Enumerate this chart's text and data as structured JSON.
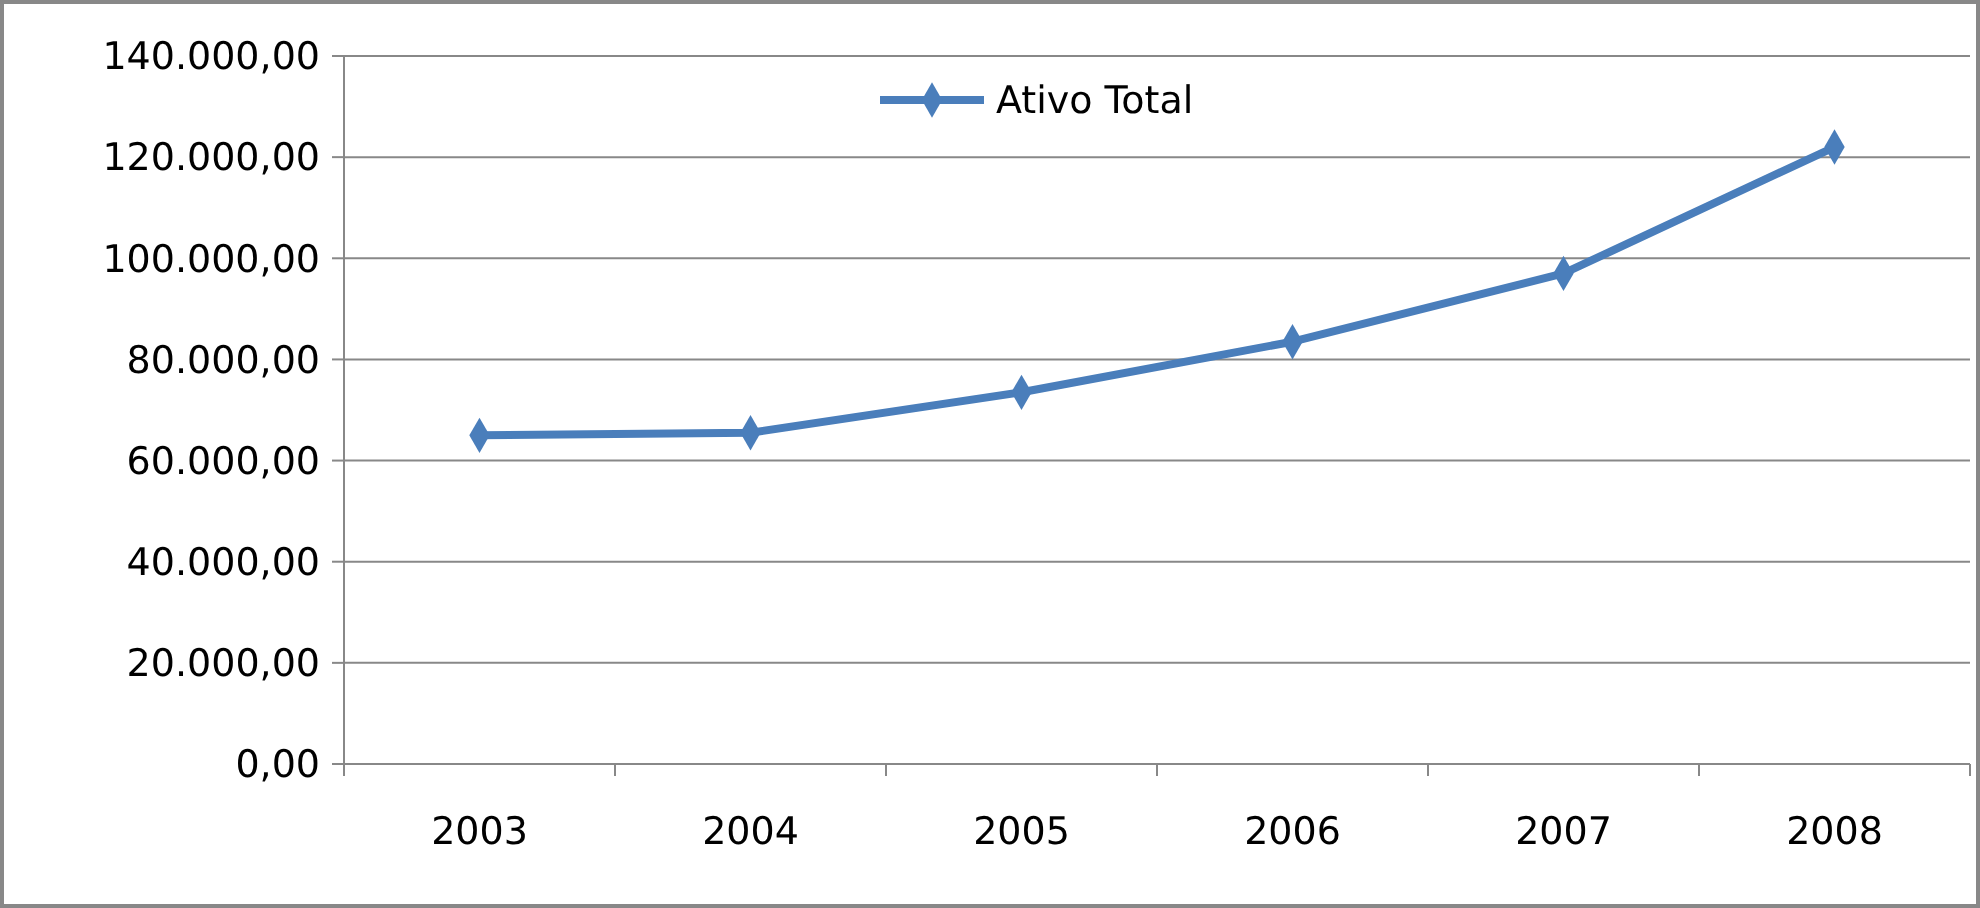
{
  "chart_data": {
    "type": "line",
    "categories": [
      "2003",
      "2004",
      "2005",
      "2006",
      "2007",
      "2008"
    ],
    "series": [
      {
        "name": "Ativo Total",
        "color": "#4a7ebb",
        "values": [
          65000,
          65500,
          73500,
          83500,
          97000,
          122000
        ]
      }
    ],
    "ylim": [
      0,
      140000
    ],
    "yticks": [
      {
        "value": 0,
        "label": "0,00"
      },
      {
        "value": 20000,
        "label": "20.000,00"
      },
      {
        "value": 40000,
        "label": "40.000,00"
      },
      {
        "value": 60000,
        "label": "60.000,00"
      },
      {
        "value": 80000,
        "label": "80.000,00"
      },
      {
        "value": 100000,
        "label": "100.000,00"
      },
      {
        "value": 120000,
        "label": "120.000,00"
      },
      {
        "value": 140000,
        "label": "140.000,00"
      }
    ],
    "grid": "y",
    "legend": "top",
    "marker": "diamond",
    "line_style": "solid"
  }
}
